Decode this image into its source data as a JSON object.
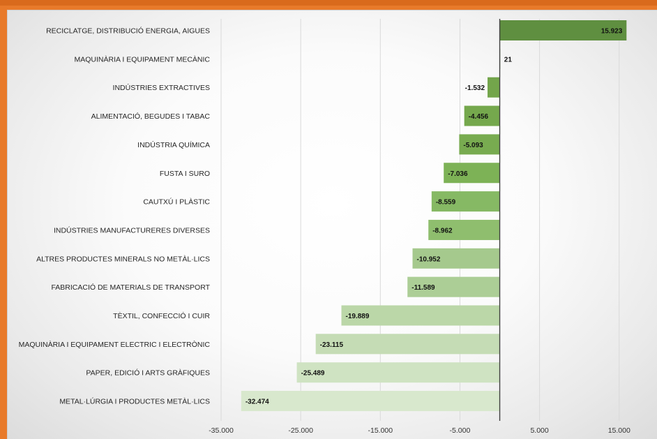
{
  "chart_data": {
    "type": "bar",
    "orientation": "horizontal",
    "title": "",
    "xlabel": "",
    "ylabel": "",
    "xlim": [
      -35000,
      18000
    ],
    "x_ticks": [
      -35000,
      -25000,
      -15000,
      -5000,
      5000,
      15000
    ],
    "x_tick_labels": [
      "-35.000",
      "-25.000",
      "-15.000",
      "-5.000",
      "5.000",
      "15.000"
    ],
    "grid": true,
    "legend": "none",
    "categories": [
      "RECICLATGE, DISTRIBUCIÓ ENERGIA, AIGUES",
      "MAQUINÀRIA I EQUIPAMENT MECÀNIC",
      "INDÚSTRIES EXTRACTIVES",
      "ALIMENTACIÓ, BEGUDES I TABAC",
      "INDÚSTRIA QUÍMICA",
      "FUSTA I SURO",
      "CAUTXÚ I PLÀSTIC",
      "INDÚSTRIES MANUFACTURERES DIVERSES",
      "ALTRES PRODUCTES MINERALS NO METÀL·LICS",
      "FABRICACIÓ DE MATERIALS DE TRANSPORT",
      "TÈXTIL, CONFECCIÓ I CUIR",
      "MAQUINÀRIA I EQUIPAMENT ELECTRIC I ELECTRÒNIC",
      "PAPER, EDICIÓ I ARTS GRÀFIQUES",
      "METAL·LÚRGIA I PRODUCTES METÀL·LICS"
    ],
    "values": [
      15923,
      21,
      -1532,
      -4456,
      -5093,
      -7036,
      -8559,
      -8962,
      -10952,
      -11589,
      -19889,
      -23115,
      -25489,
      -32474
    ],
    "value_labels": [
      "15.923",
      "21",
      "-1.532",
      "-4.456",
      "-5.093",
      "-7.036",
      "-8.559",
      "-8.962",
      "-10.952",
      "-11.589",
      "-19.889",
      "-23.115",
      "-25.489",
      "-32.474"
    ],
    "colors": [
      "#5f8f40",
      "#6a9a45",
      "#73a54b",
      "#75a84d",
      "#78ab50",
      "#7db256",
      "#86b964",
      "#8fbe6e",
      "#a5c98d",
      "#acce96",
      "#bbd7a8",
      "#c5dcb5",
      "#cfe3c2",
      "#d8e8cd"
    ]
  }
}
